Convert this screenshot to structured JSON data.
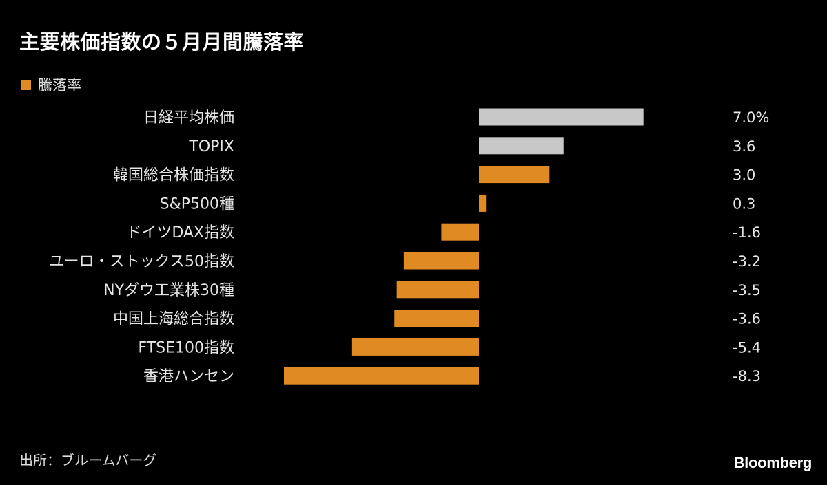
{
  "chart_data": {
    "type": "bar",
    "orientation": "horizontal",
    "title": "主要株価指数の５月月間騰落率",
    "legend": {
      "label": "騰落率",
      "color": "#e08a24",
      "placement": "top-left"
    },
    "categories": [
      "日経平均株価",
      "TOPIX",
      "韓国総合株価指数",
      "S&P500種",
      "ドイツDAX指数",
      "ユーロ・ストックス50指数",
      "NYダウ工業株30種",
      "中国上海総合指数",
      "FTSE100指数",
      "香港ハンセン"
    ],
    "values": [
      7.0,
      3.6,
      3.0,
      0.3,
      -1.6,
      -3.2,
      -3.5,
      -3.6,
      -5.4,
      -8.3
    ],
    "value_labels": [
      "7.0%",
      "3.6",
      "3.0",
      "0.3",
      "-1.6",
      "-3.2",
      "-3.5",
      "-3.6",
      "-5.4",
      "-8.3"
    ],
    "bar_colors": [
      "#c8c8c8",
      "#c8c8c8",
      "#e08a24",
      "#e08a24",
      "#e08a24",
      "#e08a24",
      "#e08a24",
      "#e08a24",
      "#e08a24",
      "#e08a24"
    ],
    "xlim": [
      -8.3,
      7.0
    ],
    "grid": false
  },
  "footer": {
    "source": "出所：ブルームバーグ",
    "logo": "Bloomberg"
  }
}
